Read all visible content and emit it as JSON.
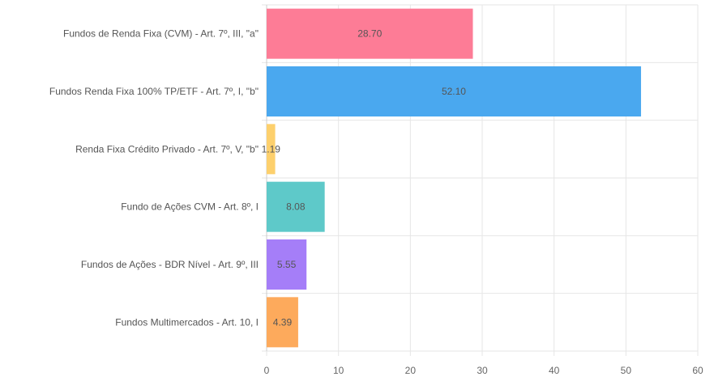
{
  "chart_data": {
    "type": "bar",
    "orientation": "horizontal",
    "categories": [
      "Fundos de Renda Fixa (CVM) - Art. 7º, III, \"a\"",
      "Fundos Renda Fixa 100% TP/ETF - Art. 7º, I, \"b\"",
      "Renda Fixa Crédito Privado - Art. 7º, V, \"b\"",
      "Fundo de Ações CVM - Art. 8º, I",
      "Fundos de Ações - BDR Nível  - Art. 9º, III",
      "Fundos Multimercados - Art. 10, I"
    ],
    "values": [
      28.7,
      52.1,
      1.19,
      8.08,
      5.55,
      4.39
    ],
    "value_labels": [
      "28.70",
      "52.10",
      "1.19",
      "8.08",
      "5.55",
      "4.39"
    ],
    "colors": [
      "#fd7c96",
      "#4aa8ef",
      "#fdd06d",
      "#5ec9c9",
      "#a57ef8",
      "#fdaa5c"
    ],
    "xlim": [
      0,
      60
    ],
    "x_ticks": [
      "0",
      "10",
      "20",
      "30",
      "40",
      "50",
      "60"
    ],
    "grid": true,
    "title": "",
    "xlabel": "",
    "ylabel": ""
  }
}
